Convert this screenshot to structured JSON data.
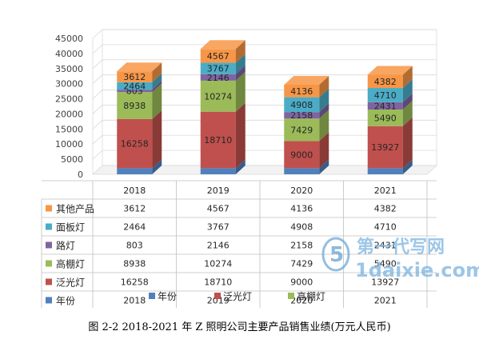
{
  "chart_data": {
    "type": "bar",
    "stacked": true,
    "three_d": true,
    "categories": [
      "2018",
      "2019",
      "2020",
      "2021"
    ],
    "ylim": [
      0,
      45000
    ],
    "yticks": [
      0,
      5000,
      10000,
      15000,
      20000,
      25000,
      30000,
      35000,
      40000,
      45000
    ],
    "grid": true,
    "series": [
      {
        "name": "年份",
        "color": "#4F81BD",
        "values": [
          2018,
          2019,
          2020,
          2021
        ]
      },
      {
        "name": "泛光灯",
        "color": "#C0504D",
        "values": [
          16258,
          18710,
          9000,
          13927
        ]
      },
      {
        "name": "高棚灯",
        "color": "#9BBB59",
        "values": [
          8938,
          10274,
          7429,
          5490
        ]
      },
      {
        "name": "路灯",
        "color": "#8064A2",
        "values": [
          803,
          2146,
          2158,
          2431
        ]
      },
      {
        "name": "面板灯",
        "color": "#4BACC6",
        "values": [
          2464,
          3767,
          4908,
          4710
        ]
      },
      {
        "name": "其他产品",
        "color": "#F79646",
        "values": [
          3612,
          4567,
          4136,
          4382
        ]
      }
    ],
    "legend": {
      "position": "bottom",
      "entries": [
        "年份",
        "泛光灯",
        "高棚灯"
      ]
    },
    "data_table": true
  },
  "watermark": {
    "line1": "第一代写网",
    "line2": "1daixie.com"
  },
  "caption": "图 2-2 2018-2021 年 Z 照明公司主要产品销售业绩(万元人民币)"
}
